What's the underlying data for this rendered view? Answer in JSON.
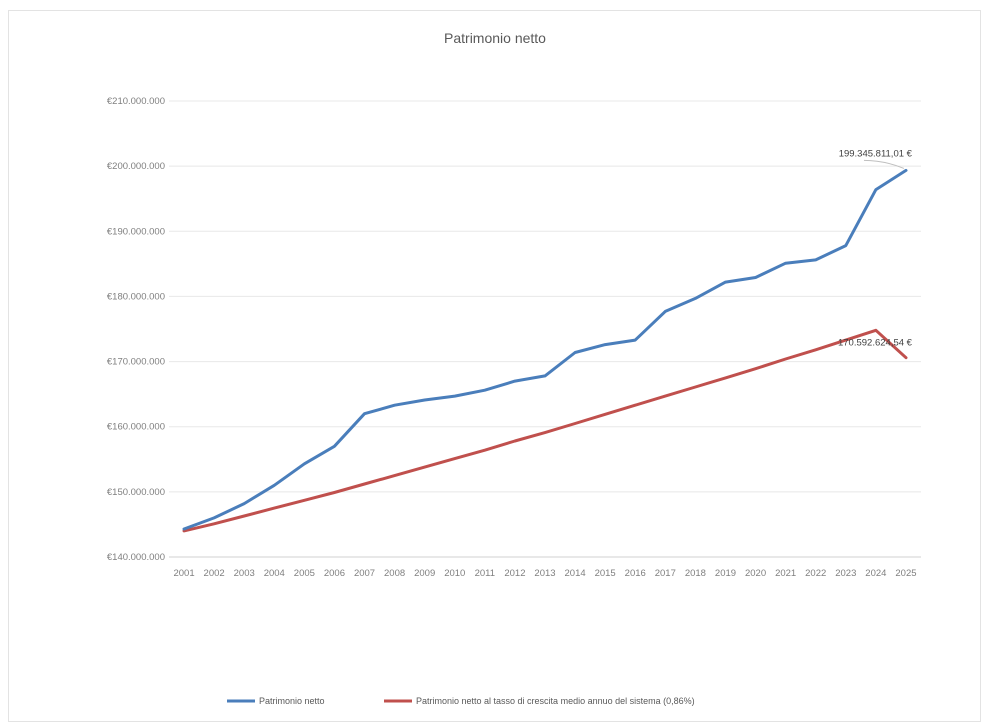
{
  "chart_data": {
    "type": "line",
    "title": "Patrimonio netto",
    "xlabel": "",
    "ylabel": "",
    "ylim": [
      140000000,
      210000000
    ],
    "y_ticks": [
      140000000,
      150000000,
      160000000,
      170000000,
      180000000,
      190000000,
      200000000,
      210000000
    ],
    "y_tick_labels": [
      "€140.000.000",
      "€150.000.000",
      "€160.000.000",
      "€170.000.000",
      "€180.000.000",
      "€190.000.000",
      "€200.000.000",
      "€210.000.000"
    ],
    "categories": [
      "2001",
      "2002",
      "2003",
      "2004",
      "2005",
      "2006",
      "2007",
      "2008",
      "2009",
      "2010",
      "2011",
      "2012",
      "2013",
      "2014",
      "2015",
      "2016",
      "2017",
      "2018",
      "2019",
      "2020",
      "2021",
      "2022",
      "2023",
      "2024",
      "2025"
    ],
    "grid": true,
    "legend_position": "bottom",
    "series": [
      {
        "name": "Patrimonio netto",
        "color": "#4a7ebb",
        "values": [
          144300000,
          146000000,
          148200000,
          151000000,
          154300000,
          157000000,
          162000000,
          163300000,
          164100000,
          164700000,
          165600000,
          167000000,
          167800000,
          171400000,
          172600000,
          173300000,
          177700000,
          179700000,
          182200000,
          182900000,
          185100000,
          185600000,
          187800000,
          196400000,
          199345811.01
        ],
        "end_label": "199.345.811,01 €"
      },
      {
        "name": "Patrimonio netto al tasso di crescita medio annuo del sistema (0,86%)",
        "color": "#c0504d",
        "values": [
          144000000,
          145100000,
          146300000,
          147500000,
          148700000,
          149900000,
          151200000,
          152500000,
          153800000,
          155100000,
          156400000,
          157800000,
          159100000,
          160500000,
          161900000,
          163300000,
          164700000,
          166100000,
          167500000,
          168900000,
          170400000,
          171800000,
          173300000,
          174800000,
          170592624.54
        ],
        "end_label": "170.592.624,54 €"
      }
    ]
  }
}
